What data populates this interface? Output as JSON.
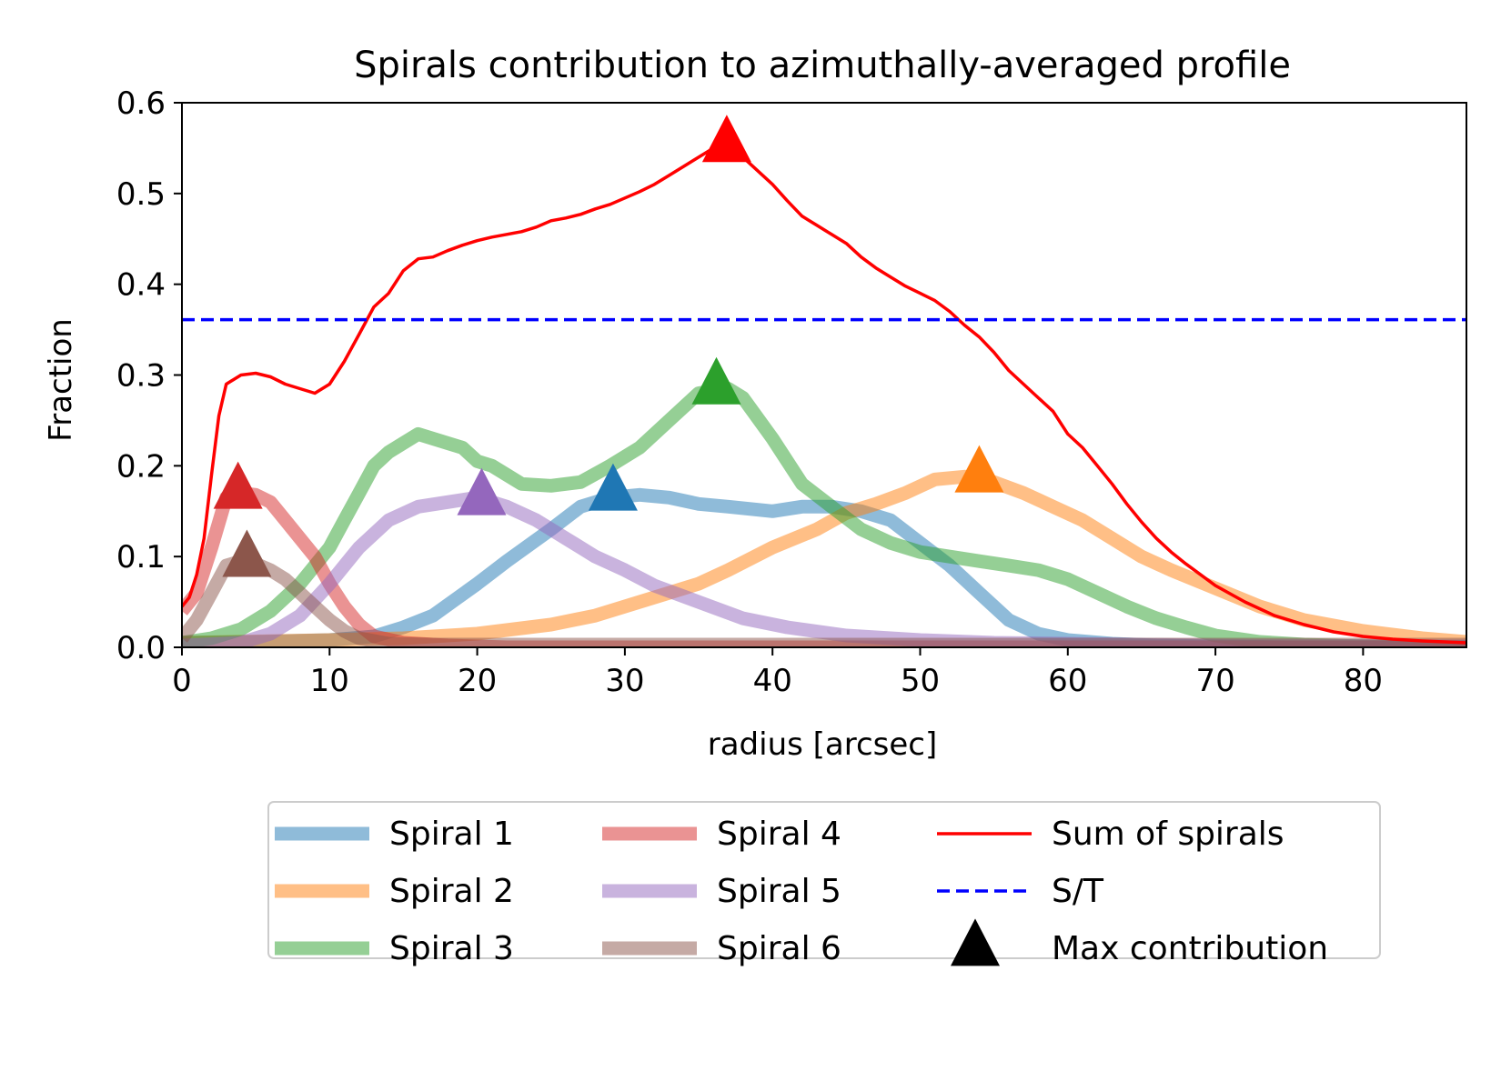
{
  "chart_data": {
    "type": "line",
    "title": "Spirals contribution to azimuthally-averaged profile",
    "xlabel": "radius [arcsec]",
    "ylabel": "Fraction",
    "xlim": [
      0,
      87
    ],
    "ylim": [
      0,
      0.6
    ],
    "xticks": [
      0,
      10,
      20,
      30,
      40,
      50,
      60,
      70,
      80
    ],
    "yticks": [
      0.0,
      0.1,
      0.2,
      0.3,
      0.4,
      0.5,
      0.6
    ],
    "grid": false,
    "legend_position": "below plot, 3 columns",
    "series": [
      {
        "name": "Spiral 1",
        "color": "#1f77b4",
        "opacity": 0.5,
        "style": "thick",
        "x": [
          0,
          5,
          10,
          13,
          15,
          17,
          20,
          22,
          25,
          27,
          29,
          31,
          33,
          35,
          37,
          40,
          42,
          44,
          46,
          48,
          50,
          52,
          54,
          56,
          58,
          60,
          63,
          66,
          70,
          75,
          80,
          87
        ],
        "y": [
          0.005,
          0.006,
          0.008,
          0.012,
          0.022,
          0.035,
          0.07,
          0.095,
          0.13,
          0.155,
          0.165,
          0.168,
          0.165,
          0.158,
          0.155,
          0.15,
          0.155,
          0.155,
          0.15,
          0.14,
          0.115,
          0.09,
          0.06,
          0.03,
          0.015,
          0.008,
          0.004,
          0.002,
          0.001,
          0.0,
          0.0,
          0.0
        ]
      },
      {
        "name": "Spiral 2",
        "color": "#ff7f0e",
        "opacity": 0.5,
        "style": "thick",
        "x": [
          0,
          10,
          15,
          20,
          25,
          28,
          30,
          33,
          35,
          37,
          40,
          43,
          45,
          47,
          49,
          51,
          53,
          55,
          57,
          59,
          61,
          63,
          65,
          67,
          70,
          73,
          76,
          80,
          84,
          87
        ],
        "y": [
          0.005,
          0.008,
          0.01,
          0.015,
          0.025,
          0.035,
          0.045,
          0.06,
          0.07,
          0.085,
          0.11,
          0.13,
          0.148,
          0.158,
          0.17,
          0.185,
          0.188,
          0.182,
          0.17,
          0.155,
          0.14,
          0.12,
          0.1,
          0.085,
          0.065,
          0.045,
          0.03,
          0.018,
          0.01,
          0.006
        ]
      },
      {
        "name": "Spiral 3",
        "color": "#2ca02c",
        "opacity": 0.5,
        "style": "thick",
        "x": [
          0,
          2,
          4,
          6,
          8,
          10,
          11,
          12,
          13,
          14,
          15,
          16,
          17,
          18,
          19,
          20,
          21,
          22,
          23,
          25,
          27,
          29,
          31,
          33,
          35,
          37,
          38,
          40,
          42,
          44,
          46,
          48,
          50,
          52,
          54,
          56,
          58,
          60,
          62,
          64,
          66,
          68,
          70,
          73,
          76,
          80,
          87
        ],
        "y": [
          0.005,
          0.01,
          0.02,
          0.04,
          0.07,
          0.11,
          0.14,
          0.17,
          0.2,
          0.215,
          0.225,
          0.235,
          0.23,
          0.225,
          0.22,
          0.205,
          0.2,
          0.19,
          0.18,
          0.178,
          0.182,
          0.2,
          0.22,
          0.25,
          0.28,
          0.285,
          0.275,
          0.23,
          0.18,
          0.155,
          0.13,
          0.115,
          0.105,
          0.1,
          0.095,
          0.09,
          0.085,
          0.075,
          0.06,
          0.045,
          0.032,
          0.022,
          0.013,
          0.006,
          0.003,
          0.001,
          0.0
        ]
      },
      {
        "name": "Spiral 4",
        "color": "#d62728",
        "opacity": 0.5,
        "style": "thick",
        "x": [
          0,
          1,
          2,
          3,
          4,
          5,
          6,
          7,
          8,
          9,
          10,
          11,
          12,
          13,
          15,
          18,
          22,
          30,
          40,
          87
        ],
        "y": [
          0.04,
          0.06,
          0.11,
          0.165,
          0.17,
          0.168,
          0.16,
          0.14,
          0.12,
          0.1,
          0.07,
          0.045,
          0.025,
          0.012,
          0.005,
          0.002,
          0.0,
          0.0,
          0.0,
          0.0
        ]
      },
      {
        "name": "Spiral 5",
        "color": "#9467bd",
        "opacity": 0.5,
        "style": "thick",
        "x": [
          0,
          4,
          6,
          8,
          10,
          12,
          14,
          16,
          18,
          20,
          22,
          24,
          26,
          28,
          30,
          32,
          35,
          38,
          41,
          45,
          50,
          55,
          60,
          70,
          87
        ],
        "y": [
          0.002,
          0.005,
          0.015,
          0.035,
          0.07,
          0.11,
          0.14,
          0.155,
          0.16,
          0.165,
          0.155,
          0.14,
          0.12,
          0.1,
          0.085,
          0.068,
          0.05,
          0.032,
          0.022,
          0.013,
          0.008,
          0.005,
          0.004,
          0.002,
          0.001
        ]
      },
      {
        "name": "Spiral 6",
        "color": "#8c564b",
        "opacity": 0.5,
        "style": "thick",
        "x": [
          0,
          1,
          2,
          3,
          4,
          5,
          6,
          7,
          8,
          9,
          10,
          11,
          12,
          14,
          17,
          20,
          30,
          40,
          60,
          87
        ],
        "y": [
          0.01,
          0.03,
          0.06,
          0.09,
          0.095,
          0.092,
          0.085,
          0.075,
          0.06,
          0.045,
          0.03,
          0.018,
          0.01,
          0.004,
          0.003,
          0.003,
          0.003,
          0.003,
          0.003,
          0.003
        ]
      },
      {
        "name": "Sum of spirals",
        "color": "#ff0000",
        "opacity": 1,
        "style": "thin",
        "x": [
          0,
          0.5,
          1,
          1.5,
          2,
          2.5,
          3,
          3.5,
          4,
          5,
          6,
          7,
          8,
          9,
          10,
          11,
          12,
          13,
          14,
          15,
          16,
          17,
          18,
          19,
          20,
          21,
          22,
          23,
          24,
          25,
          26,
          27,
          28,
          29,
          30,
          31,
          32,
          33,
          34,
          35,
          36,
          37,
          38,
          39,
          40,
          41,
          42,
          43,
          44,
          45,
          46,
          47,
          48,
          49,
          50,
          51,
          52,
          53,
          54,
          55,
          56,
          57,
          58,
          59,
          60,
          61,
          62,
          63,
          64,
          65,
          66,
          67,
          68,
          70,
          72,
          74,
          76,
          78,
          80,
          82,
          84,
          87
        ],
        "y": [
          0.045,
          0.055,
          0.08,
          0.12,
          0.19,
          0.255,
          0.29,
          0.295,
          0.3,
          0.302,
          0.298,
          0.29,
          0.285,
          0.28,
          0.29,
          0.315,
          0.345,
          0.375,
          0.39,
          0.415,
          0.428,
          0.43,
          0.437,
          0.443,
          0.448,
          0.452,
          0.455,
          0.458,
          0.463,
          0.47,
          0.473,
          0.477,
          0.483,
          0.488,
          0.495,
          0.502,
          0.51,
          0.52,
          0.53,
          0.54,
          0.55,
          0.552,
          0.54,
          0.525,
          0.51,
          0.492,
          0.475,
          0.465,
          0.455,
          0.445,
          0.43,
          0.418,
          0.408,
          0.398,
          0.39,
          0.382,
          0.37,
          0.355,
          0.342,
          0.325,
          0.305,
          0.29,
          0.275,
          0.26,
          0.235,
          0.22,
          0.2,
          0.18,
          0.158,
          0.138,
          0.12,
          0.105,
          0.092,
          0.068,
          0.05,
          0.035,
          0.025,
          0.017,
          0.012,
          0.009,
          0.007,
          0.005
        ]
      },
      {
        "name": "S/T",
        "color": "#0000ff",
        "opacity": 1,
        "style": "dashed",
        "x": [
          0,
          87
        ],
        "y": [
          0.361,
          0.361
        ]
      }
    ],
    "markers": [
      {
        "series": "Spiral 1",
        "x": 29.2,
        "y": 0.168,
        "color": "#1f77b4"
      },
      {
        "series": "Spiral 2",
        "x": 54.0,
        "y": 0.188,
        "color": "#ff7f0e"
      },
      {
        "series": "Spiral 3",
        "x": 36.2,
        "y": 0.285,
        "color": "#2ca02c"
      },
      {
        "series": "Spiral 4",
        "x": 3.8,
        "y": 0.17,
        "color": "#d62728"
      },
      {
        "series": "Spiral 5",
        "x": 20.3,
        "y": 0.163,
        "color": "#9467bd"
      },
      {
        "series": "Spiral 6",
        "x": 4.4,
        "y": 0.095,
        "color": "#8c564b"
      },
      {
        "series": "Sum of spirals",
        "x": 36.9,
        "y": 0.552,
        "color": "#ff0000"
      }
    ],
    "legend": [
      {
        "label": "Spiral 1",
        "color": "#1f77b4",
        "kind": "thick"
      },
      {
        "label": "Spiral 2",
        "color": "#ff7f0e",
        "kind": "thick"
      },
      {
        "label": "Spiral 3",
        "color": "#2ca02c",
        "kind": "thick"
      },
      {
        "label": "Spiral 4",
        "color": "#d62728",
        "kind": "thick"
      },
      {
        "label": "Spiral 5",
        "color": "#9467bd",
        "kind": "thick"
      },
      {
        "label": "Spiral 6",
        "color": "#8c564b",
        "kind": "thick"
      },
      {
        "label": "Sum of spirals",
        "color": "#ff0000",
        "kind": "thin"
      },
      {
        "label": "S/T",
        "color": "#0000ff",
        "kind": "dashed"
      },
      {
        "label": "Max contribution",
        "color": "#000000",
        "kind": "marker"
      }
    ]
  }
}
